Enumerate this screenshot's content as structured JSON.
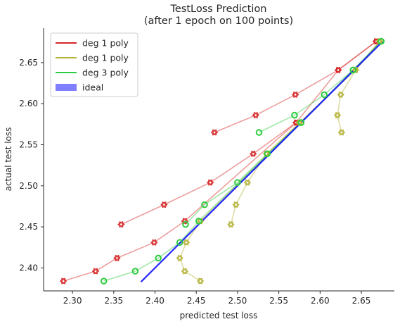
{
  "chart_data": {
    "type": "line",
    "title": "TestLoss Prediction",
    "subtitle": "(after 1 epoch on 100 points)",
    "xlabel": "predicted test loss",
    "ylabel": "actual test loss",
    "xlim": [
      2.265,
      2.69
    ],
    "ylim": [
      2.372,
      2.692
    ],
    "xticks": [
      "2.30",
      "2.35",
      "2.40",
      "2.45",
      "2.50",
      "2.55",
      "2.60",
      "2.65"
    ],
    "yticks": [
      "2.40",
      "2.45",
      "2.50",
      "2.55",
      "2.60",
      "2.65"
    ],
    "legend_position": "top-left",
    "legend": [
      {
        "label": "deg 1 poly",
        "color": "#d62728",
        "kind": "line"
      },
      {
        "label": "deg 1 poly",
        "color": "#b5b33a",
        "kind": "line"
      },
      {
        "label": "deg 3 poly",
        "color": "#2ecc40",
        "kind": "line"
      },
      {
        "label": "ideal",
        "color": "#0000ff",
        "kind": "patch"
      }
    ],
    "series": [
      {
        "color": "#d62728",
        "marker": "gear",
        "points": [
          [
            2.289,
            2.384
          ],
          [
            2.328,
            2.396
          ],
          [
            2.354,
            2.412
          ],
          [
            2.399,
            2.431
          ],
          [
            2.436,
            2.457
          ],
          [
            2.571,
            2.577
          ]
        ]
      },
      {
        "color": "#d62728",
        "marker": "gear",
        "points": [
          [
            2.359,
            2.453
          ],
          [
            2.411,
            2.477
          ],
          [
            2.467,
            2.504
          ],
          [
            2.519,
            2.539
          ],
          [
            2.571,
            2.577
          ],
          [
            2.622,
            2.641
          ],
          [
            2.668,
            2.676
          ]
        ]
      },
      {
        "color": "#d62728",
        "marker": "gear",
        "points": [
          [
            2.472,
            2.565
          ],
          [
            2.522,
            2.586
          ],
          [
            2.57,
            2.611
          ],
          [
            2.622,
            2.641
          ],
          [
            2.668,
            2.676
          ]
        ]
      },
      {
        "color": "#b5b33a",
        "marker": "gear",
        "points": [
          [
            2.455,
            2.384
          ],
          [
            2.436,
            2.396
          ],
          [
            2.43,
            2.412
          ],
          [
            2.438,
            2.431
          ],
          [
            2.455,
            2.457
          ],
          [
            2.575,
            2.577
          ]
        ]
      },
      {
        "color": "#b5b33a",
        "marker": "gear",
        "points": [
          [
            2.492,
            2.453
          ],
          [
            2.498,
            2.477
          ],
          [
            2.512,
            2.504
          ],
          [
            2.535,
            2.539
          ],
          [
            2.575,
            2.577
          ],
          [
            2.643,
            2.641
          ],
          [
            2.672,
            2.676
          ]
        ]
      },
      {
        "color": "#b5b33a",
        "marker": "gear",
        "points": [
          [
            2.626,
            2.565
          ],
          [
            2.621,
            2.586
          ],
          [
            2.625,
            2.611
          ],
          [
            2.643,
            2.641
          ],
          [
            2.672,
            2.676
          ]
        ]
      },
      {
        "color": "#2ecc40",
        "marker": "ring",
        "points": [
          [
            2.338,
            2.384
          ],
          [
            2.376,
            2.396
          ],
          [
            2.404,
            2.412
          ],
          [
            2.43,
            2.431
          ],
          [
            2.453,
            2.457
          ],
          [
            2.577,
            2.577
          ]
        ]
      },
      {
        "color": "#2ecc40",
        "marker": "ring",
        "points": [
          [
            2.437,
            2.453
          ],
          [
            2.46,
            2.477
          ],
          [
            2.5,
            2.504
          ],
          [
            2.536,
            2.539
          ],
          [
            2.577,
            2.577
          ],
          [
            2.64,
            2.641
          ],
          [
            2.674,
            2.676
          ]
        ]
      },
      {
        "color": "#2ecc40",
        "marker": "ring",
        "points": [
          [
            2.526,
            2.565
          ],
          [
            2.569,
            2.586
          ],
          [
            2.605,
            2.611
          ],
          [
            2.64,
            2.641
          ],
          [
            2.674,
            2.676
          ]
        ]
      }
    ],
    "ideal": {
      "color": "#0000ff",
      "from": [
        2.383,
        2.383
      ],
      "to": [
        2.676,
        2.676
      ]
    }
  }
}
